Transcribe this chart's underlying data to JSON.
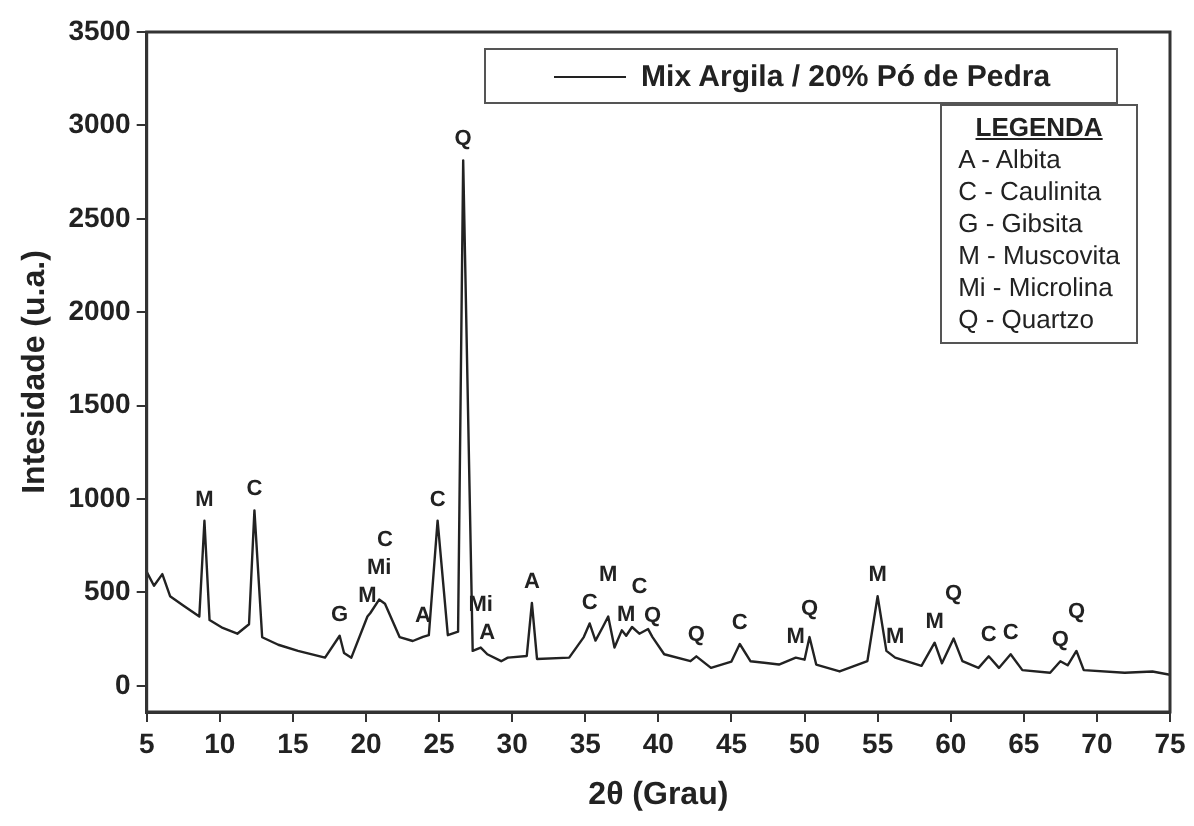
{
  "chart_data": {
    "type": "line",
    "xlabel": "2θ (Grau)",
    "ylabel": "Intesidade (u.a.)",
    "xlim": [
      5,
      75
    ],
    "xticks": [
      5,
      10,
      15,
      20,
      25,
      30,
      35,
      40,
      45,
      50,
      55,
      60,
      65,
      70,
      75
    ],
    "ylim": [
      -140,
      3500
    ],
    "yticks": [
      0,
      500,
      1000,
      1500,
      2000,
      2500,
      3000,
      3500
    ],
    "grid": false,
    "legend": "top",
    "marker": "none",
    "line_style": "solid",
    "series": [
      {
        "name": "Mix Argila / 20% Pó de Pedra",
        "color": "#222222",
        "x": [
          5,
          5.5,
          6.07,
          6.6,
          7.5,
          8.6,
          8.95,
          9.3,
          10.2,
          11.2,
          12.0,
          12.37,
          12.9,
          14,
          15.35,
          17.2,
          18.2,
          18.5,
          19.0,
          20.1,
          20.3,
          20.9,
          21.3,
          22.3,
          23.2,
          23.9,
          24.3,
          24.9,
          25.6,
          26.3,
          26.65,
          27.3,
          27.85,
          28.3,
          29.25,
          29.7,
          31.0,
          31.35,
          31.7,
          33.9,
          34.9,
          35.3,
          35.7,
          36.2,
          36.57,
          37.0,
          37.5,
          37.8,
          38.2,
          38.7,
          39.3,
          39.6,
          40.4,
          42.2,
          42.6,
          43.6,
          45.0,
          45.57,
          46.3,
          48.25,
          49.4,
          50.0,
          50.34,
          50.8,
          52.4,
          54.3,
          55.0,
          55.6,
          56.2,
          58.0,
          58.9,
          59.4,
          60.2,
          60.8,
          61.9,
          62.6,
          63.3,
          64.1,
          64.9,
          66.8,
          67.5,
          68.0,
          68.6,
          69.1,
          71.9,
          73.8,
          75
        ],
        "values": [
          610,
          536,
          598,
          480,
          430,
          371,
          884,
          352,
          310,
          279,
          330,
          939,
          260,
          220,
          187,
          151,
          268,
          176,
          151,
          371,
          390,
          462,
          440,
          261,
          240,
          262,
          271,
          884,
          271,
          290,
          2813,
          187,
          205,
          169,
          132,
          151,
          160,
          444,
          144,
          151,
          261,
          334,
          242,
          315,
          371,
          205,
          297,
          268,
          315,
          279,
          304,
          261,
          169,
          132,
          158,
          96,
          130,
          224,
          132,
          114,
          151,
          140,
          261,
          114,
          77,
          132,
          480,
          187,
          151,
          107,
          231,
          121,
          253,
          132,
          96,
          158,
          96,
          169,
          84,
          70,
          132,
          110,
          187,
          84,
          70,
          77,
          59
        ]
      }
    ],
    "annotations": [
      {
        "text": "M",
        "x": 8.95,
        "y": 884
      },
      {
        "text": "C",
        "x": 12.37,
        "y": 939
      },
      {
        "text": "G",
        "x": 18.2,
        "y": 268
      },
      {
        "text": "M",
        "x": 20.1,
        "y": 371
      },
      {
        "text": "Mi",
        "x": 20.9,
        "y": 462
      },
      {
        "text": "C",
        "x": 21.3,
        "y": 440
      },
      {
        "text": "A",
        "x": 23.9,
        "y": 262
      },
      {
        "text": "C",
        "x": 24.9,
        "y": 884
      },
      {
        "text": "Q",
        "x": 26.65,
        "y": 2813
      },
      {
        "text": "A",
        "x": 28.3,
        "y": 169
      },
      {
        "text": "Mi",
        "x": 27.85,
        "y": 205
      },
      {
        "text": "A",
        "x": 31.35,
        "y": 444
      },
      {
        "text": "C",
        "x": 35.3,
        "y": 334
      },
      {
        "text": "M",
        "x": 36.57,
        "y": 371
      },
      {
        "text": "M",
        "x": 37.8,
        "y": 268
      },
      {
        "text": "C",
        "x": 38.7,
        "y": 279
      },
      {
        "text": "Q",
        "x": 39.6,
        "y": 261
      },
      {
        "text": "Q",
        "x": 42.6,
        "y": 158
      },
      {
        "text": "C",
        "x": 45.57,
        "y": 224
      },
      {
        "text": "M",
        "x": 49.4,
        "y": 151
      },
      {
        "text": "Q",
        "x": 50.34,
        "y": 261
      },
      {
        "text": "M",
        "x": 55.0,
        "y": 480
      },
      {
        "text": "M",
        "x": 56.2,
        "y": 151
      },
      {
        "text": "M",
        "x": 58.9,
        "y": 231
      },
      {
        "text": "Q",
        "x": 60.2,
        "y": 253
      },
      {
        "text": "C",
        "x": 62.6,
        "y": 158
      },
      {
        "text": "C",
        "x": 64.1,
        "y": 169
      },
      {
        "text": "Q",
        "x": 67.5,
        "y": 132
      },
      {
        "text": "Q",
        "x": 68.6,
        "y": 187
      },
      "LEGENDA",
      "A - Albita",
      "C - Caulinita",
      "G - Gibsita",
      "M - Muscovita",
      "Mi - Microlina",
      "Q - Quartzo"
    ]
  }
}
